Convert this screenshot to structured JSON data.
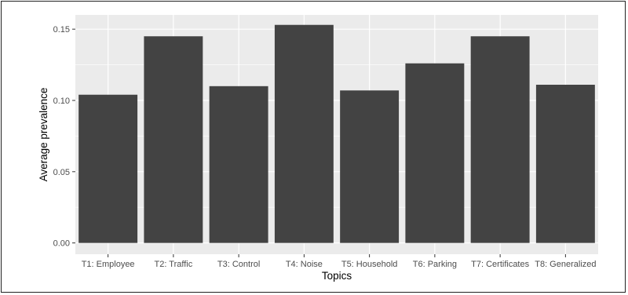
{
  "chart_data": {
    "type": "bar",
    "title": "",
    "xlabel": "Topics",
    "ylabel": "Average prevalence",
    "categories": [
      "T1: Employee",
      "T2: Traffic",
      "T3: Control",
      "T4: Noise",
      "T5: Household",
      "T6: Parking",
      "T7: Certificates",
      "T8: Generalized"
    ],
    "values": [
      0.104,
      0.145,
      0.11,
      0.153,
      0.107,
      0.126,
      0.145,
      0.111
    ],
    "ylim": [
      -0.0079,
      0.16
    ],
    "yticks": [
      0.0,
      0.05,
      0.1,
      0.15
    ],
    "ytick_labels": [
      "0.00",
      "0.05",
      "0.10",
      "0.15"
    ],
    "grid": true,
    "colors": {
      "panel": "#ebebeb",
      "gridline": "#ffffff",
      "bar": "#434343"
    }
  }
}
